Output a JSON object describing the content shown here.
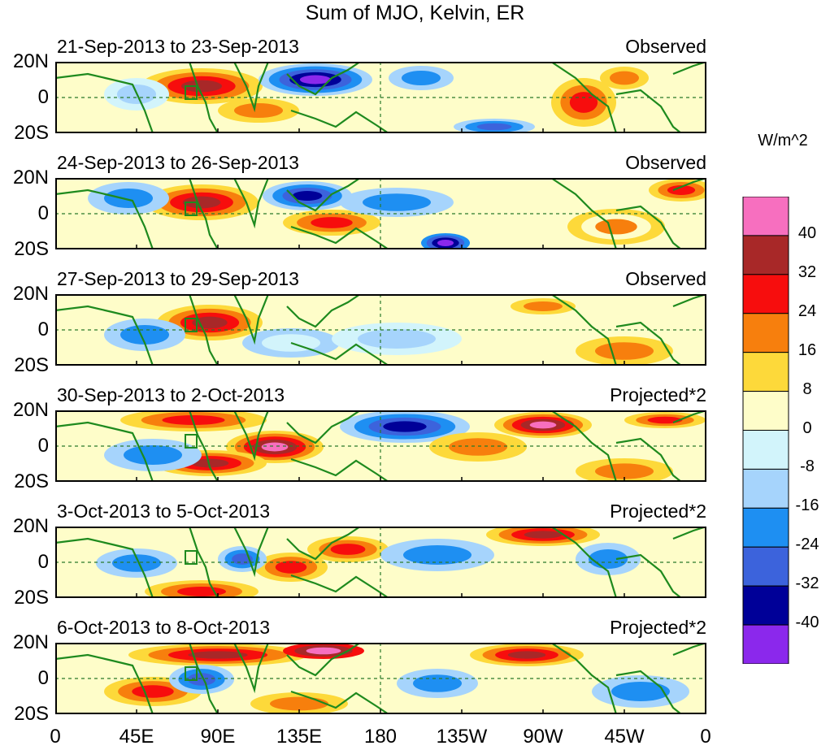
{
  "title": "Sum of MJO, Kelvin, ER",
  "panels": [
    {
      "date_range": "21-Sep-2013 to 23-Sep-2013",
      "label": "Observed"
    },
    {
      "date_range": "24-Sep-2013 to 26-Sep-2013",
      "label": "Observed"
    },
    {
      "date_range": "27-Sep-2013 to 29-Sep-2013",
      "label": "Observed"
    },
    {
      "date_range": "30-Sep-2013 to 2-Oct-2013",
      "label": "Projected*2"
    },
    {
      "date_range": "3-Oct-2013 to 5-Oct-2013",
      "label": "Projected*2"
    },
    {
      "date_range": "6-Oct-2013 to 8-Oct-2013",
      "label": "Projected*2"
    }
  ],
  "lat_labels": [
    "20N",
    "0",
    "20S"
  ],
  "lon_labels": [
    "0",
    "45E",
    "90E",
    "135E",
    "180",
    "135W",
    "90W",
    "45W",
    "0"
  ],
  "colorbar": {
    "units": "W/m^2",
    "ticks": [
      "40",
      "32",
      "24",
      "16",
      "8",
      "0",
      "-8",
      "-16",
      "-24",
      "-32",
      "-40"
    ],
    "colors": [
      "#f76fbf",
      "#a82828",
      "#f70d0d",
      "#f77f0d",
      "#fdd93a",
      "#fefdc9",
      "#d2f4fb",
      "#a6d4fc",
      "#1e8ff2",
      "#3c63dc",
      "#000098",
      "#8b28ec"
    ]
  }
}
